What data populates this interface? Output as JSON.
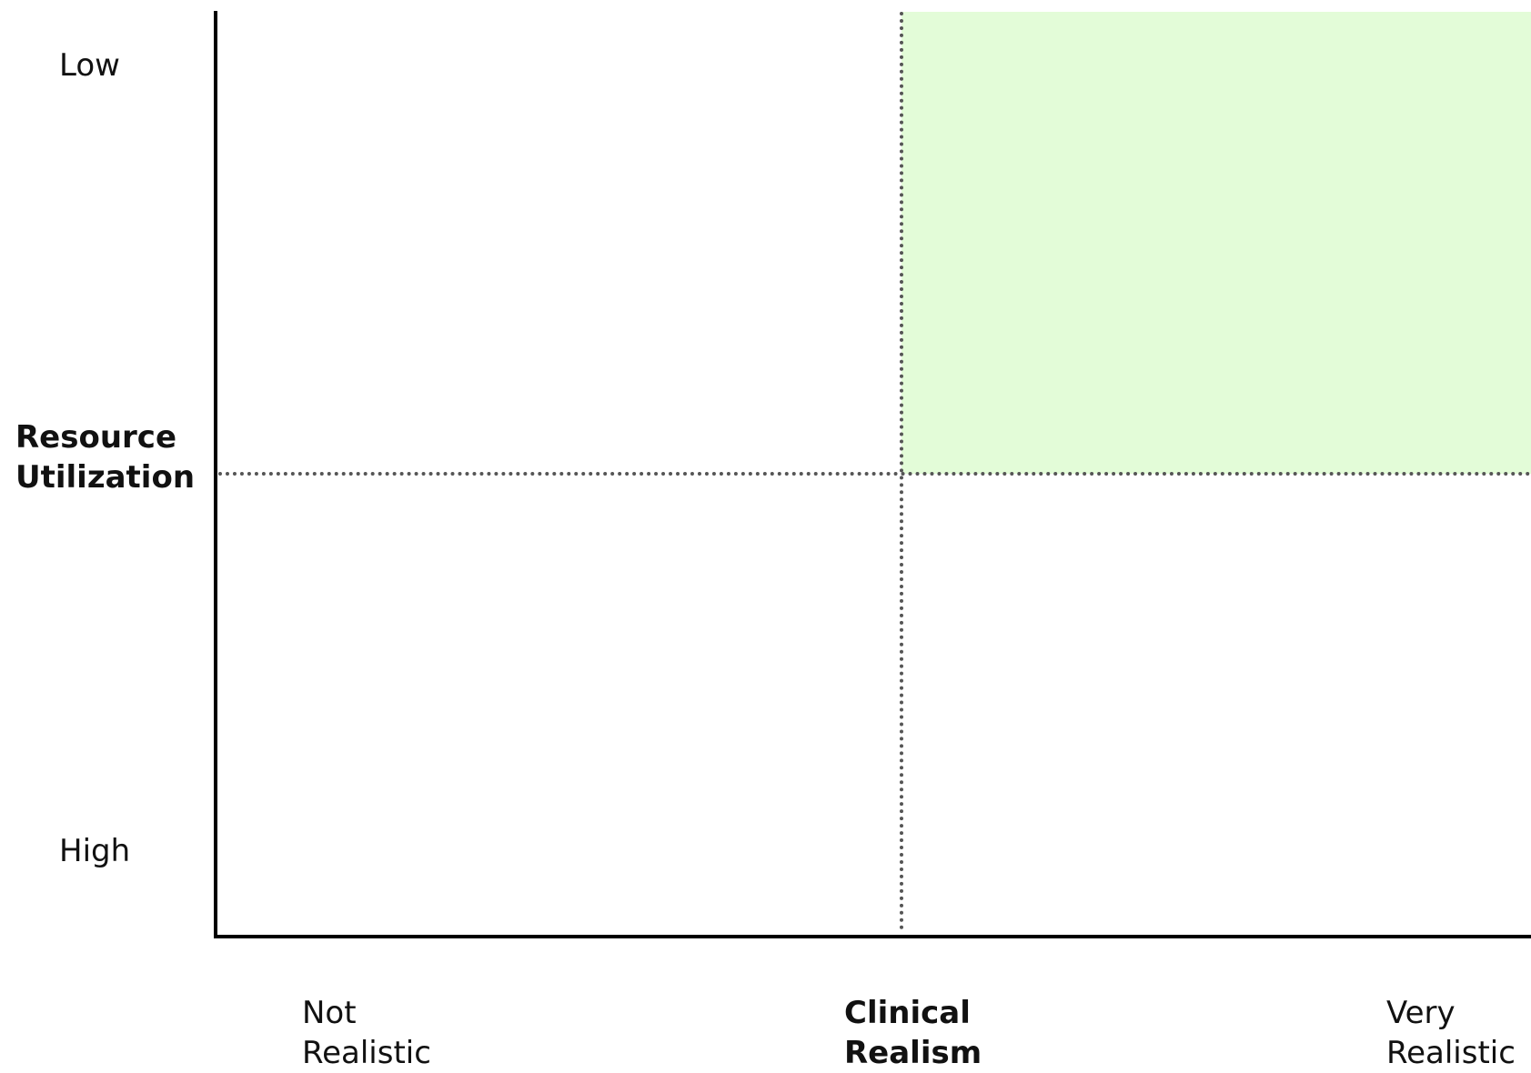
{
  "y_axis": {
    "title_line1": "Resource",
    "title_line2": "Utilization",
    "top_label": "Low",
    "bottom_label": "High"
  },
  "x_axis": {
    "title_line1": "Clinical",
    "title_line2": "Realism",
    "left_label_line1": "Not",
    "left_label_line2": "Realistic",
    "right_label_line1": "Very",
    "right_label_line2": "Realistic"
  },
  "colors": {
    "highlight_quadrant": "#e3fcd8",
    "axis": "#000000",
    "divider": "#555555"
  }
}
